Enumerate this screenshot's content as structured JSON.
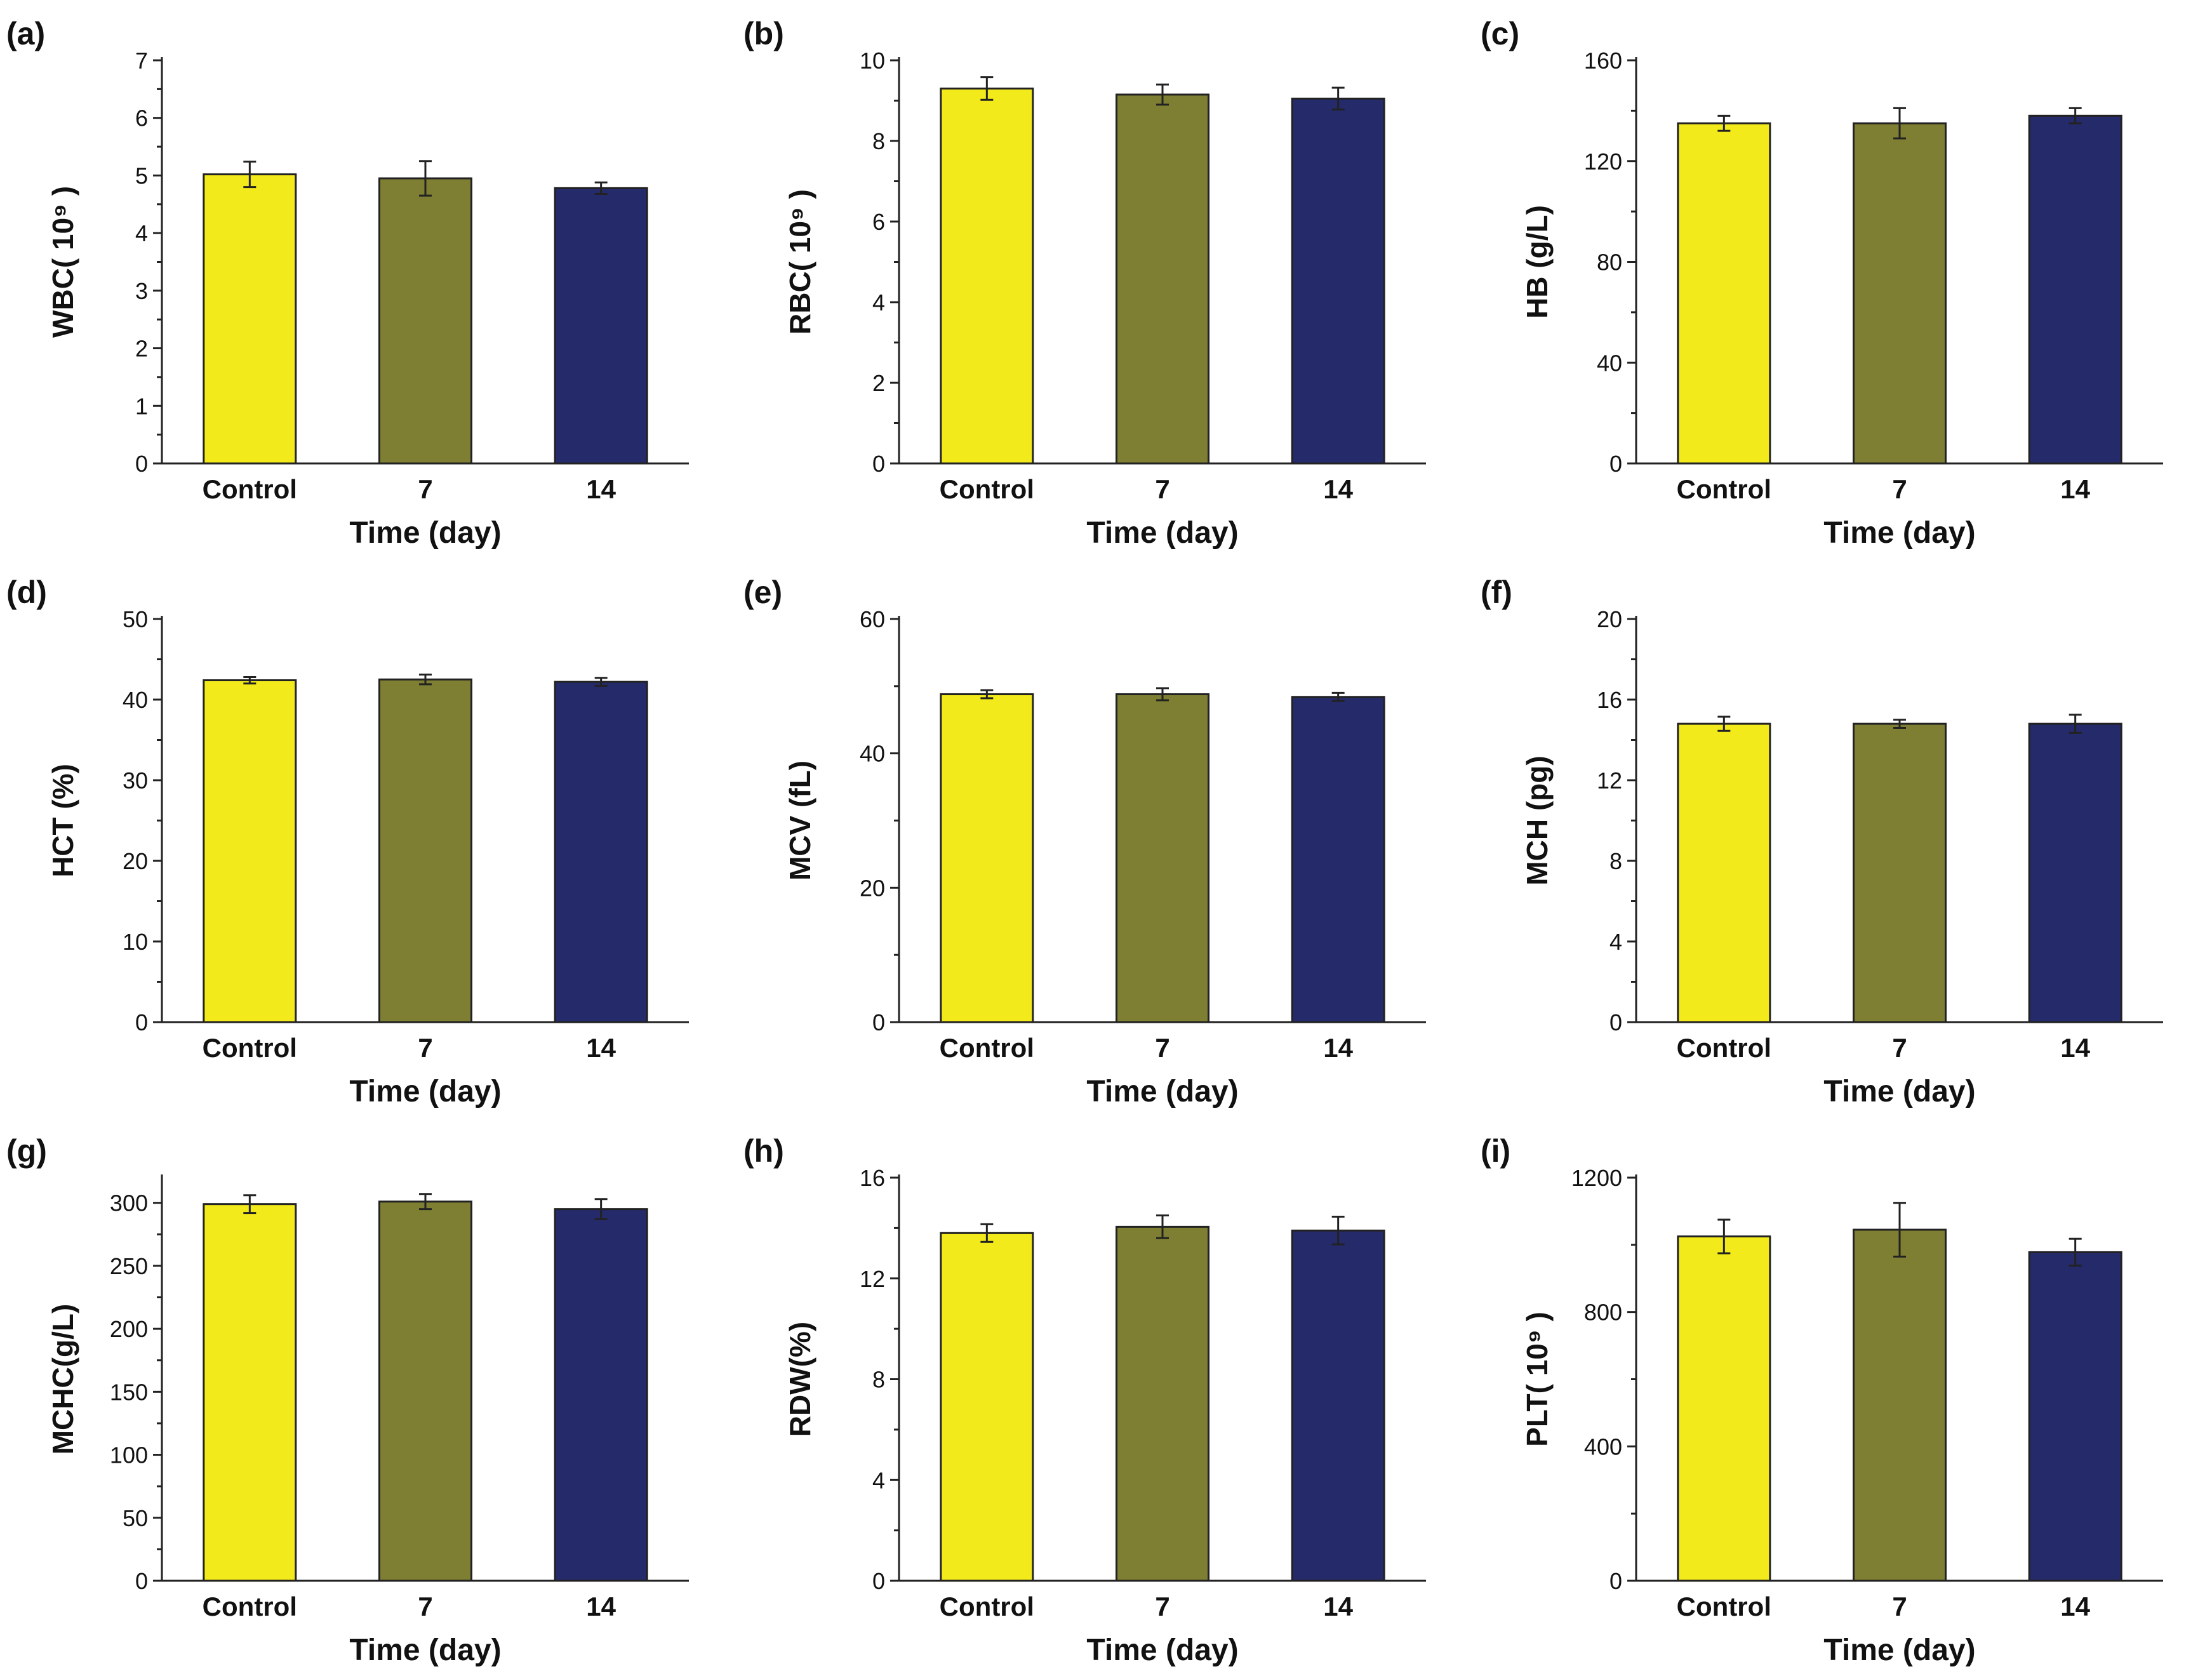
{
  "colors": {
    "control": "#F2EA1A",
    "day7": "#7E7F33",
    "day14": "#252A6A"
  },
  "chart_data": [
    {
      "id": "a",
      "type": "bar",
      "panel_label": "(a)",
      "ylabel": "WBC( 10⁹ )",
      "xlabel": "Time (day)",
      "categories": [
        "Control",
        "7",
        "14"
      ],
      "values": [
        5.02,
        4.95,
        4.78
      ],
      "errors": [
        0.22,
        0.3,
        0.1
      ],
      "ylim": [
        0,
        7
      ],
      "yticks": [
        0,
        1,
        2,
        3,
        4,
        5,
        6,
        7
      ],
      "minor": true
    },
    {
      "id": "b",
      "type": "bar",
      "panel_label": "(b)",
      "ylabel": "RBC( 10⁹ )",
      "xlabel": "Time (day)",
      "categories": [
        "Control",
        "7",
        "14"
      ],
      "values": [
        9.3,
        9.15,
        9.05
      ],
      "errors": [
        0.28,
        0.25,
        0.27
      ],
      "ylim": [
        0,
        10
      ],
      "yticks": [
        0,
        2,
        4,
        6,
        8,
        10
      ],
      "minor": true
    },
    {
      "id": "c",
      "type": "bar",
      "panel_label": "(c)",
      "ylabel": "HB (g/L)",
      "xlabel": "Time (day)",
      "categories": [
        "Control",
        "7",
        "14"
      ],
      "values": [
        135,
        135,
        138
      ],
      "errors": [
        3,
        6,
        3
      ],
      "ylim": [
        0,
        160
      ],
      "yticks": [
        0,
        40,
        80,
        120,
        160
      ],
      "minor": true
    },
    {
      "id": "d",
      "type": "bar",
      "panel_label": "(d)",
      "ylabel": "HCT (%)",
      "xlabel": "Time (day)",
      "categories": [
        "Control",
        "7",
        "14"
      ],
      "values": [
        42.4,
        42.5,
        42.2
      ],
      "errors": [
        0.4,
        0.6,
        0.5
      ],
      "ylim": [
        0,
        50
      ],
      "yticks": [
        0,
        10,
        20,
        30,
        40,
        50
      ],
      "minor": true
    },
    {
      "id": "e",
      "type": "bar",
      "panel_label": "(e)",
      "ylabel": "MCV (fL)",
      "xlabel": "Time (day)",
      "categories": [
        "Control",
        "7",
        "14"
      ],
      "values": [
        48.8,
        48.8,
        48.4
      ],
      "errors": [
        0.6,
        0.9,
        0.6
      ],
      "ylim": [
        0,
        60
      ],
      "yticks": [
        0,
        20,
        40,
        60
      ],
      "minor": true
    },
    {
      "id": "f",
      "type": "bar",
      "panel_label": "(f)",
      "ylabel": "MCH (pg)",
      "xlabel": "Time (day)",
      "categories": [
        "Control",
        "7",
        "14"
      ],
      "values": [
        14.8,
        14.8,
        14.8
      ],
      "errors": [
        0.35,
        0.2,
        0.45
      ],
      "ylim": [
        0,
        20
      ],
      "yticks": [
        0,
        4,
        8,
        12,
        16,
        20
      ],
      "minor": true
    },
    {
      "id": "g",
      "type": "bar",
      "panel_label": "(g)",
      "ylabel": "MCHC(g/L)",
      "xlabel": "Time (day)",
      "categories": [
        "Control",
        "7",
        "14"
      ],
      "values": [
        299,
        301,
        295
      ],
      "errors": [
        7,
        6,
        8
      ],
      "ylim": [
        0,
        320
      ],
      "yticks": [
        0,
        50,
        100,
        150,
        200,
        250,
        300
      ],
      "minor": true
    },
    {
      "id": "h",
      "type": "bar",
      "panel_label": "(h)",
      "ylabel": "RDW(%)",
      "xlabel": "Time (day)",
      "categories": [
        "Control",
        "7",
        "14"
      ],
      "values": [
        13.8,
        14.05,
        13.9
      ],
      "errors": [
        0.35,
        0.45,
        0.55
      ],
      "ylim": [
        0,
        16
      ],
      "yticks": [
        0,
        4,
        8,
        12,
        16
      ],
      "minor": true
    },
    {
      "id": "i",
      "type": "bar",
      "panel_label": "(i)",
      "ylabel": "PLT( 10⁹ )",
      "xlabel": "Time (day)",
      "categories": [
        "Control",
        "7",
        "14"
      ],
      "values": [
        1025,
        1045,
        978
      ],
      "errors": [
        50,
        80,
        40
      ],
      "ylim": [
        0,
        1200
      ],
      "yticks": [
        0,
        400,
        800,
        1200
      ],
      "minor": true
    }
  ]
}
